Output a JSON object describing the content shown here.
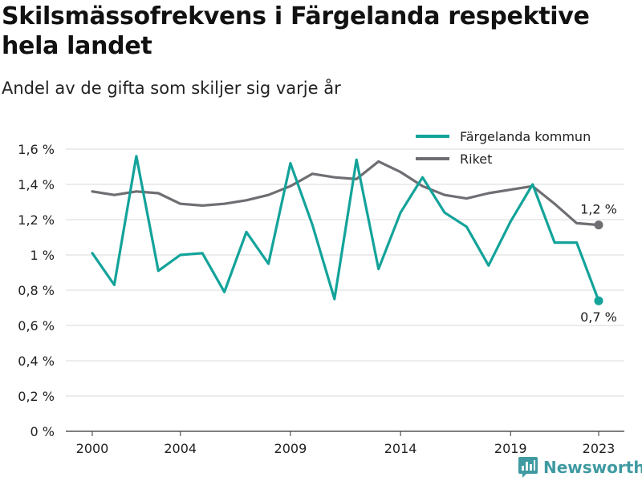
{
  "title": "Skilsmässofrekvens i Färgelanda respektive hela landet",
  "subtitle": "Andel av de gifta som skiljer sig varje år",
  "brand": "Newsworthy",
  "chart_data": {
    "type": "line",
    "x": [
      2000,
      2001,
      2002,
      2003,
      2004,
      2005,
      2006,
      2007,
      2008,
      2009,
      2010,
      2011,
      2012,
      2013,
      2014,
      2015,
      2016,
      2017,
      2018,
      2019,
      2020,
      2021,
      2022,
      2023
    ],
    "x_ticks": [
      2000,
      2004,
      2009,
      2014,
      2019,
      2023
    ],
    "x_tick_labels": [
      "2000",
      "2004",
      "2009",
      "2014",
      "2019",
      "2023"
    ],
    "ylim": [
      0,
      1.6
    ],
    "y_ticks": [
      0,
      0.2,
      0.4,
      0.6,
      0.8,
      1.0,
      1.2,
      1.4,
      1.6
    ],
    "y_tick_labels": [
      "0 %",
      "0,2 %",
      "0,4 %",
      "0,6 %",
      "0,8 %",
      "1 %",
      "1,2 %",
      "1,4 %",
      "1,6 %"
    ],
    "grid": true,
    "legend_position": "top-right",
    "series": [
      {
        "name": "Färgelanda kommun",
        "color": "#13a39a",
        "values": [
          1.01,
          0.83,
          1.56,
          0.91,
          1.0,
          1.01,
          0.79,
          1.13,
          0.95,
          1.52,
          1.17,
          0.75,
          1.54,
          0.92,
          1.24,
          1.44,
          1.24,
          1.16,
          0.94,
          1.19,
          1.4,
          1.07,
          1.07,
          0.74
        ],
        "end_label": "0,7 %"
      },
      {
        "name": "Riket",
        "color": "#6e6e73",
        "values": [
          1.36,
          1.34,
          1.36,
          1.35,
          1.29,
          1.28,
          1.29,
          1.31,
          1.34,
          1.39,
          1.46,
          1.44,
          1.43,
          1.53,
          1.47,
          1.39,
          1.34,
          1.32,
          1.35,
          1.37,
          1.39,
          1.29,
          1.18,
          1.17
        ],
        "end_label": "1,2 %"
      }
    ]
  }
}
